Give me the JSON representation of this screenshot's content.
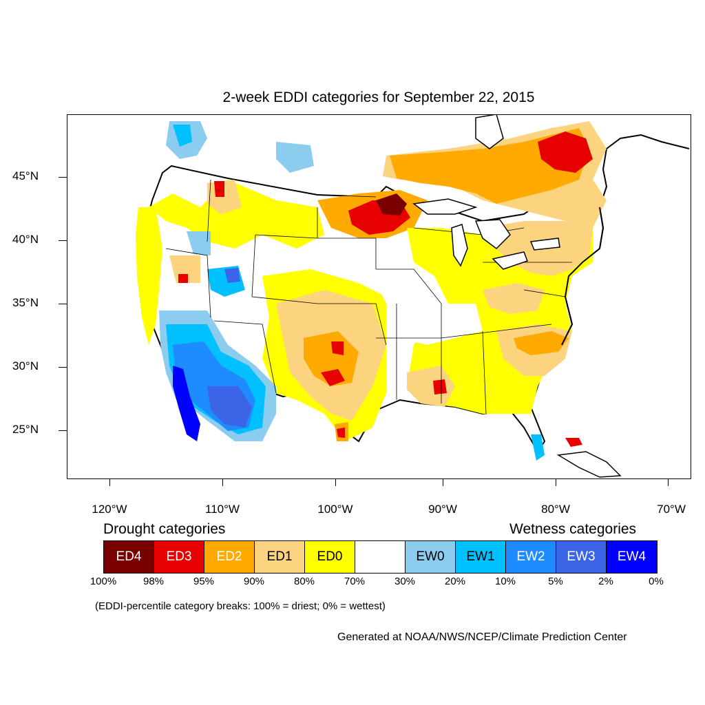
{
  "title": "2-week EDDI categories for September 22, 2015",
  "lat_labels": [
    "45°N",
    "40°N",
    "35°N",
    "30°N",
    "25°N"
  ],
  "lon_labels": [
    "120°W",
    "110°W",
    "100°W",
    "90°W",
    "80°W",
    "70°W"
  ],
  "legend": {
    "drought_heading": "Drought categories",
    "wetness_heading": "Wetness categories",
    "categories": [
      {
        "label": "ED4",
        "color": "#7a0000",
        "text_color": "#ffffff"
      },
      {
        "label": "ED3",
        "color": "#e60000",
        "text_color": "#ffffff"
      },
      {
        "label": "ED2",
        "color": "#ffaa00",
        "text_color": "#ffffff"
      },
      {
        "label": "ED1",
        "color": "#fcd37f",
        "text_color": "#000000"
      },
      {
        "label": "ED0",
        "color": "#ffff00",
        "text_color": "#000000"
      },
      {
        "label": "",
        "color": "#ffffff",
        "text_color": "#000000"
      },
      {
        "label": "EW0",
        "color": "#8ccdef",
        "text_color": "#000000"
      },
      {
        "label": "EW1",
        "color": "#00c0ff",
        "text_color": "#000000"
      },
      {
        "label": "EW2",
        "color": "#1e8cff",
        "text_color": "#ffffff"
      },
      {
        "label": "EW3",
        "color": "#3c64e6",
        "text_color": "#ffffff"
      },
      {
        "label": "EW4",
        "color": "#0000ff",
        "text_color": "#ffffff"
      }
    ],
    "percentiles": [
      "100%",
      "98%",
      "95%",
      "90%",
      "80%",
      "70%",
      "30%",
      "20%",
      "10%",
      "5%",
      "2%",
      "0%"
    ],
    "note": "(EDDI-percentile category breaks: 100% = driest; 0% = wettest)"
  },
  "credit": "Generated at NOAA/NWS/NCEP/Climate Prediction Center"
}
